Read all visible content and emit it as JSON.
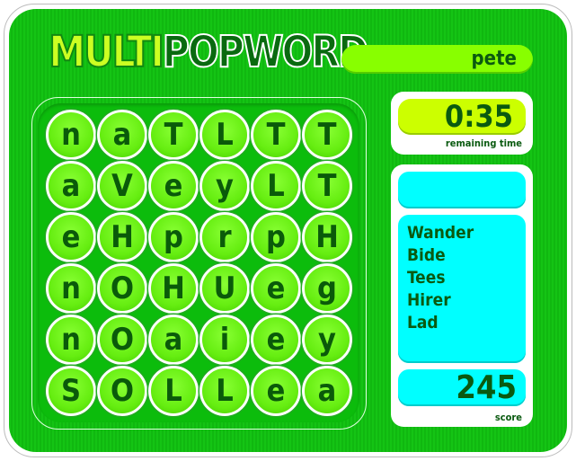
{
  "title": {
    "part1": "MULTI",
    "part2": "POPWORD"
  },
  "player_name": "pete",
  "grid": [
    [
      "n",
      "a",
      "T",
      "L",
      "T",
      "T"
    ],
    [
      "a",
      "V",
      "e",
      "y",
      "L",
      "T"
    ],
    [
      "e",
      "H",
      "p",
      "r",
      "p",
      "H"
    ],
    [
      "n",
      "O",
      "H",
      "U",
      "e",
      "g"
    ],
    [
      "n",
      "O",
      "a",
      "i",
      "e",
      "y"
    ],
    [
      "S",
      "O",
      "L",
      "L",
      "e",
      "a"
    ]
  ],
  "timer": {
    "value": "0:35",
    "label": "remaining time"
  },
  "current_word": "",
  "found_words": [
    "Wander",
    "Bide",
    "Tees",
    "Hirer",
    "Lad"
  ],
  "score": {
    "value": "245",
    "label": "score"
  },
  "colors": {
    "background": "#14c414",
    "tile": "#66ee11",
    "panel": "#00ffff",
    "timer": "#ccff00",
    "name_bar": "#88ff00",
    "text": "#0a5a10"
  }
}
